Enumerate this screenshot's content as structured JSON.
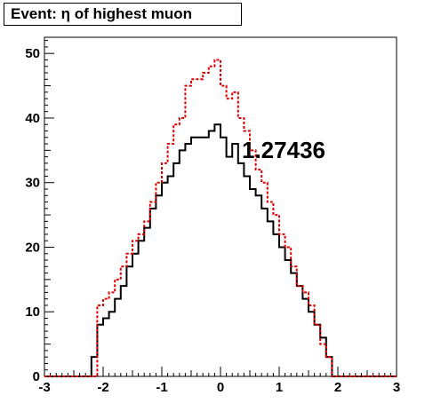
{
  "chart_data": {
    "type": "histogram",
    "title": "Event: η of highest muon",
    "xlabel": "",
    "ylabel": "",
    "xlim": [
      -3,
      3
    ],
    "ylim": [
      0,
      52.5
    ],
    "x_ticks": [
      -3,
      -2,
      -1,
      0,
      1,
      2,
      3
    ],
    "y_ticks": [
      0,
      10,
      20,
      30,
      40,
      50
    ],
    "grid": false,
    "bin_width": 0.1,
    "bin_low_edges": [
      -2.2,
      -2.1,
      -2.0,
      -1.9,
      -1.8,
      -1.7,
      -1.6,
      -1.5,
      -1.4,
      -1.3,
      -1.2,
      -1.1,
      -1.0,
      -0.9,
      -0.8,
      -0.7,
      -0.6,
      -0.5,
      -0.4,
      -0.3,
      -0.2,
      -0.1,
      0.0,
      0.1,
      0.2,
      0.3,
      0.4,
      0.5,
      0.6,
      0.7,
      0.8,
      0.9,
      1.0,
      1.1,
      1.2,
      1.3,
      1.4,
      1.5,
      1.6,
      1.7,
      1.8,
      1.9,
      2.0,
      2.1
    ],
    "series": [
      {
        "style": "solid",
        "color": "#000000",
        "values": [
          3,
          8,
          9,
          10,
          12,
          14,
          17,
          19,
          21,
          23,
          26,
          28,
          30,
          31,
          33,
          35,
          36,
          37,
          37,
          37,
          38,
          39,
          37,
          34,
          36,
          33,
          31,
          29,
          28,
          26,
          24,
          22,
          20,
          18,
          16,
          14,
          12,
          10,
          8,
          6,
          3,
          0,
          0,
          0
        ]
      },
      {
        "style": "dashed",
        "color": "#dd0000",
        "values": [
          0,
          11,
          12,
          13,
          15,
          17,
          19,
          21,
          22,
          24,
          27,
          30,
          33,
          36,
          39,
          40,
          45,
          46,
          46,
          47,
          48,
          49,
          45,
          43,
          44,
          40,
          38,
          35,
          32,
          30,
          27,
          25,
          22,
          20,
          17,
          14,
          13,
          11,
          8,
          5,
          3,
          0,
          0,
          0
        ]
      }
    ],
    "annotation": "1.27436"
  },
  "colors": {
    "background": "#ffffff",
    "axis": "#000000"
  }
}
